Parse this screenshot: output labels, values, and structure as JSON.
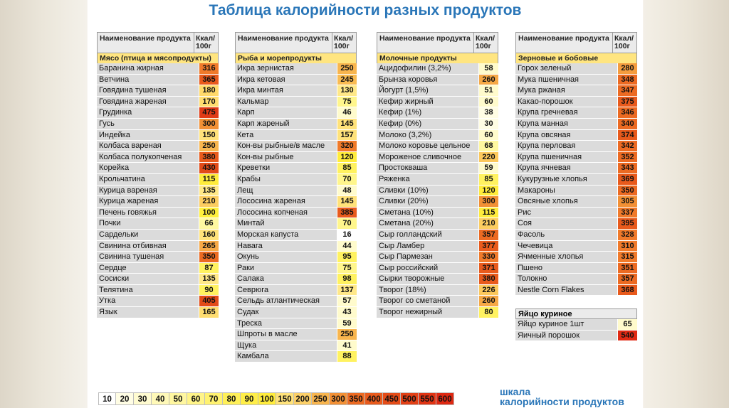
{
  "title": "Таблица калорийности разных продуктов",
  "header": {
    "name": "Наименование продукта",
    "kcal": "Ккал/ 100г"
  },
  "columns": [
    {
      "category": "Мясо (птица и мясопродукты)",
      "items": [
        {
          "name": "Баранина жирная",
          "kcal": "316",
          "color": "#f07a2a"
        },
        {
          "name": "Ветчина",
          "kcal": "365",
          "color": "#e85a1c"
        },
        {
          "name": "Говядина тушеная",
          "kcal": "180",
          "color": "#ffd96a"
        },
        {
          "name": "Говядина жареная",
          "kcal": "170",
          "color": "#ffdd70"
        },
        {
          "name": "Грудинка",
          "kcal": "475",
          "color": "#e03a16"
        },
        {
          "name": "Гусь",
          "kcal": "300",
          "color": "#f29035"
        },
        {
          "name": "Индейка",
          "kcal": "150",
          "color": "#ffe27a"
        },
        {
          "name": "Колбаса вареная",
          "kcal": "250",
          "color": "#f8b54e"
        },
        {
          "name": "Колбаса полукопченая",
          "kcal": "380",
          "color": "#e85a1c"
        },
        {
          "name": "Корейка",
          "kcal": "430",
          "color": "#e24a18"
        },
        {
          "name": "Крольчатина",
          "kcal": "115",
          "color": "#ffec3c"
        },
        {
          "name": "Курица вареная",
          "kcal": "135",
          "color": "#ffe888"
        },
        {
          "name": "Курица жареная",
          "kcal": "210",
          "color": "#fccd60"
        },
        {
          "name": "Печень говяжья",
          "kcal": "100",
          "color": "#fff03c"
        },
        {
          "name": "Почки",
          "kcal": "66",
          "color": "#fff8a0"
        },
        {
          "name": "Сардельки",
          "kcal": "160",
          "color": "#ffe27a"
        },
        {
          "name": "Свинина отбивная",
          "kcal": "265",
          "color": "#f6a846"
        },
        {
          "name": "Свинина тушеная",
          "kcal": "350",
          "color": "#ec6a22"
        },
        {
          "name": "Сердце",
          "kcal": "87",
          "color": "#fff260"
        },
        {
          "name": "Сосиски",
          "kcal": "135",
          "color": "#ffe888"
        },
        {
          "name": "Телятина",
          "kcal": "90",
          "color": "#fff260"
        },
        {
          "name": "Утка",
          "kcal": "405",
          "color": "#e24a18"
        },
        {
          "name": "Язык",
          "kcal": "165",
          "color": "#ffdd70"
        }
      ]
    },
    {
      "category": "Рыба и морепродукты",
      "items": [
        {
          "name": "Икра зернистая",
          "kcal": "250",
          "color": "#f8b54e"
        },
        {
          "name": "Икра кетовая",
          "kcal": "245",
          "color": "#f9bb52"
        },
        {
          "name": "Икра минтая",
          "kcal": "130",
          "color": "#ffe888"
        },
        {
          "name": "Кальмар",
          "kcal": "75",
          "color": "#fff68c"
        },
        {
          "name": "Карп",
          "kcal": "46",
          "color": "#fffbcc"
        },
        {
          "name": "Карп жареный",
          "kcal": "145",
          "color": "#ffe27a"
        },
        {
          "name": "Кета",
          "kcal": "157",
          "color": "#ffe27a"
        },
        {
          "name": "Кон-вы рыбные/в масле",
          "kcal": "320",
          "color": "#f07a2a"
        },
        {
          "name": "Кон-вы рыбные",
          "kcal": "120",
          "color": "#ffec3c"
        },
        {
          "name": "Креветки",
          "kcal": "85",
          "color": "#fff260"
        },
        {
          "name": "Крабы",
          "kcal": "70",
          "color": "#fff68c"
        },
        {
          "name": "Лещ",
          "kcal": "48",
          "color": "#fffbcc"
        },
        {
          "name": "Лососина жареная",
          "kcal": "145",
          "color": "#ffe27a"
        },
        {
          "name": "Лососина копченая",
          "kcal": "385",
          "color": "#e85a1c"
        },
        {
          "name": "Минтай",
          "kcal": "70",
          "color": "#fff68c"
        },
        {
          "name": "Морская капуста",
          "kcal": "16",
          "color": "#ffffff"
        },
        {
          "name": "Навага",
          "kcal": "44",
          "color": "#fffbcc"
        },
        {
          "name": "Окунь",
          "kcal": "95",
          "color": "#fff260"
        },
        {
          "name": "Раки",
          "kcal": "75",
          "color": "#fff68c"
        },
        {
          "name": "Салака",
          "kcal": "98",
          "color": "#fff260"
        },
        {
          "name": "Севрюга",
          "kcal": "137",
          "color": "#ffe888"
        },
        {
          "name": "Сельдь атлантическая",
          "kcal": "57",
          "color": "#fffbcc"
        },
        {
          "name": "Судак",
          "kcal": "43",
          "color": "#fffbcc"
        },
        {
          "name": "Треска",
          "kcal": "59",
          "color": "#fffbcc"
        },
        {
          "name": "Шпроты в масле",
          "kcal": "250",
          "color": "#f8b54e"
        },
        {
          "name": "Щука",
          "kcal": "41",
          "color": "#fffbcc"
        },
        {
          "name": "Камбала",
          "kcal": "88",
          "color": "#fff260"
        }
      ]
    },
    {
      "category": "Молочные продукты",
      "items": [
        {
          "name": "Ацидофилин (3,2%)",
          "kcal": "58",
          "color": "#fffbcc"
        },
        {
          "name": "Брынза коровья",
          "kcal": "260",
          "color": "#f6a846"
        },
        {
          "name": "Йогурт (1,5%)",
          "kcal": "51",
          "color": "#fffbcc"
        },
        {
          "name": "Кефир жирный",
          "kcal": "60",
          "color": "#fffbcc"
        },
        {
          "name": "Кефир (1%)",
          "kcal": "38",
          "color": "#fffde4"
        },
        {
          "name": "Кефир (0%)",
          "kcal": "30",
          "color": "#fffde4"
        },
        {
          "name": "Молоко (3,2%)",
          "kcal": "60",
          "color": "#fffbcc"
        },
        {
          "name": "Молоко коровье цельное",
          "kcal": "68",
          "color": "#fff8a0"
        },
        {
          "name": "Мороженое сливочное",
          "kcal": "220",
          "color": "#fcc85c"
        },
        {
          "name": "Простокваша",
          "kcal": "59",
          "color": "#fffbcc"
        },
        {
          "name": "Ряженка",
          "kcal": "85",
          "color": "#fff260"
        },
        {
          "name": "Сливки (10%)",
          "kcal": "120",
          "color": "#ffec3c"
        },
        {
          "name": "Сливки (20%)",
          "kcal": "300",
          "color": "#f29035"
        },
        {
          "name": "Сметана (10%)",
          "kcal": "115",
          "color": "#ffec3c"
        },
        {
          "name": "Сметана (20%)",
          "kcal": "210",
          "color": "#fccd60"
        },
        {
          "name": "Сыр голландский",
          "kcal": "357",
          "color": "#ec6a22"
        },
        {
          "name": "Сыр Ламбер",
          "kcal": "377",
          "color": "#e85a1c"
        },
        {
          "name": "Сыр Пармезан",
          "kcal": "330",
          "color": "#f07a2a"
        },
        {
          "name": "Сыр российский",
          "kcal": "371",
          "color": "#e85a1c"
        },
        {
          "name": "Сырки творожные",
          "kcal": "380",
          "color": "#e85a1c"
        },
        {
          "name": "Творог (18%)",
          "kcal": "226",
          "color": "#fcc85c"
        },
        {
          "name": "Творог со сметаной",
          "kcal": "260",
          "color": "#f6a846"
        },
        {
          "name": "Творог нежирный",
          "kcal": "80",
          "color": "#fff260"
        }
      ]
    },
    {
      "category": "Зерновые и бобовые",
      "items": [
        {
          "name": "Горох зеленый",
          "kcal": "280",
          "color": "#f49c3e"
        },
        {
          "name": "Мука пшеничная",
          "kcal": "348",
          "color": "#ec6a22"
        },
        {
          "name": "Мука ржаная",
          "kcal": "347",
          "color": "#ec6a22"
        },
        {
          "name": "Какао-порошок",
          "kcal": "375",
          "color": "#e85a1c"
        },
        {
          "name": "Крупа гречневая",
          "kcal": "346",
          "color": "#ec6a22"
        },
        {
          "name": "Крупа манная",
          "kcal": "340",
          "color": "#ec6a22"
        },
        {
          "name": "Крупа овсяная",
          "kcal": "374",
          "color": "#e85a1c"
        },
        {
          "name": "Крупа перловая",
          "kcal": "342",
          "color": "#ec6a22"
        },
        {
          "name": "Крупа пшеничная",
          "kcal": "352",
          "color": "#ec6a22"
        },
        {
          "name": "Крупа ячневая",
          "kcal": "343",
          "color": "#ec6a22"
        },
        {
          "name": "Кукурузные хлопья",
          "kcal": "369",
          "color": "#e85a1c"
        },
        {
          "name": "Макароны",
          "kcal": "350",
          "color": "#ec6a22"
        },
        {
          "name": "Овсяные хлопья",
          "kcal": "305",
          "color": "#f29035"
        },
        {
          "name": "Рис",
          "kcal": "337",
          "color": "#f07a2a"
        },
        {
          "name": "Соя",
          "kcal": "395",
          "color": "#e85a1c"
        },
        {
          "name": "Фасоль",
          "kcal": "328",
          "color": "#f07a2a"
        },
        {
          "name": "Чечевица",
          "kcal": "310",
          "color": "#f07a2a"
        },
        {
          "name": "Ячменные хлопья",
          "kcal": "315",
          "color": "#f07a2a"
        },
        {
          "name": "Пшено",
          "kcal": "351",
          "color": "#ec6a22"
        },
        {
          "name": "Толокно",
          "kcal": "357",
          "color": "#ec6a22"
        },
        {
          "name": "Nestle Corn Flakes",
          "kcal": "368",
          "color": "#e85a1c"
        }
      ]
    }
  ],
  "eggs": {
    "category": "Яйцо куриное",
    "items": [
      {
        "name": "Яйцо куриное 1шт",
        "kcal": "65",
        "color": "#fffbcc"
      },
      {
        "name": "Яичный порошок",
        "kcal": "540",
        "color": "#e02a14"
      }
    ]
  },
  "scale": {
    "label_line1": "шкала",
    "label_line2": "калорийности продуктов",
    "steps": [
      {
        "v": "10",
        "color": "#ffffff"
      },
      {
        "v": "20",
        "color": "#fffde4"
      },
      {
        "v": "30",
        "color": "#fffbd0"
      },
      {
        "v": "40",
        "color": "#fff9b8"
      },
      {
        "v": "50",
        "color": "#fff7a0"
      },
      {
        "v": "60",
        "color": "#fff488"
      },
      {
        "v": "70",
        "color": "#fff270"
      },
      {
        "v": "80",
        "color": "#fff058"
      },
      {
        "v": "90",
        "color": "#ffee48"
      },
      {
        "v": "100",
        "color": "#ffec3c"
      },
      {
        "v": "150",
        "color": "#ffe27a"
      },
      {
        "v": "200",
        "color": "#fcd068"
      },
      {
        "v": "250",
        "color": "#f8b54e"
      },
      {
        "v": "300",
        "color": "#f29035"
      },
      {
        "v": "350",
        "color": "#ec6a22"
      },
      {
        "v": "400",
        "color": "#e85a1c"
      },
      {
        "v": "450",
        "color": "#e44c18"
      },
      {
        "v": "500",
        "color": "#e24016"
      },
      {
        "v": "550",
        "color": "#e03414"
      },
      {
        "v": "600",
        "color": "#de2812"
      }
    ]
  }
}
